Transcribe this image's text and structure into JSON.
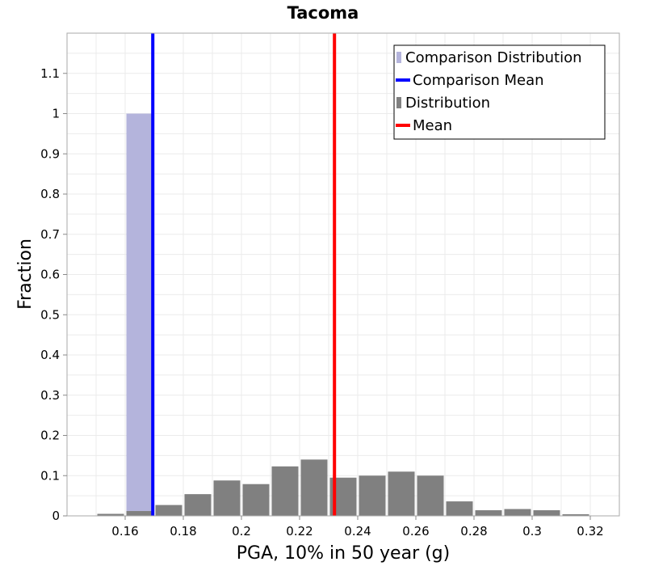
{
  "chart_data": {
    "type": "bar",
    "title": "Tacoma",
    "xlabel": "PGA, 10% in 50 year (g)",
    "ylabel": "Fraction",
    "xlim": [
      0.14,
      0.33
    ],
    "ylim": [
      0,
      1.2
    ],
    "bin_width": 0.01,
    "grid": true,
    "legend_position": "top-right",
    "x_ticks": [
      "0.16",
      "0.18",
      "0.2",
      "0.22",
      "0.24",
      "0.26",
      "0.28",
      "0.3",
      "0.32"
    ],
    "y_ticks": [
      "0",
      "0.1",
      "0.2",
      "0.3",
      "0.4",
      "0.5",
      "0.6",
      "0.7",
      "0.8",
      "0.9",
      "1",
      "1.1"
    ],
    "series": [
      {
        "name": "Comparison Distribution",
        "kind": "bar",
        "color": "#b4b4dc",
        "bins": [
          0.165
        ],
        "values": [
          1.0
        ]
      },
      {
        "name": "Comparison Mean",
        "kind": "vline",
        "color": "#0000ff",
        "x": 0.1695
      },
      {
        "name": "Distribution",
        "kind": "bar",
        "color": "#808080",
        "bins": [
          0.155,
          0.165,
          0.175,
          0.185,
          0.195,
          0.205,
          0.215,
          0.225,
          0.235,
          0.245,
          0.255,
          0.265,
          0.275,
          0.285,
          0.295,
          0.305,
          0.315
        ],
        "values": [
          0.005,
          0.012,
          0.027,
          0.054,
          0.088,
          0.079,
          0.123,
          0.14,
          0.095,
          0.1,
          0.11,
          0.1,
          0.036,
          0.014,
          0.017,
          0.014,
          0.004
        ]
      },
      {
        "name": "Mean",
        "kind": "vline",
        "color": "#ff0000",
        "x": 0.232
      }
    ]
  }
}
